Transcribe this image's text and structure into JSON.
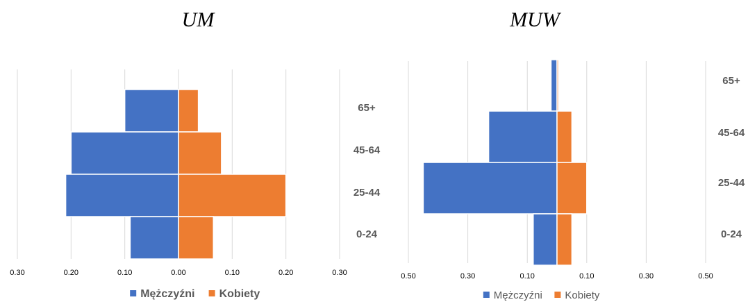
{
  "chart_data": [
    {
      "type": "bar",
      "orientation": "horizontal",
      "layout": "population-pyramid",
      "title": "UM",
      "categories": [
        "0-24",
        "25-44",
        "45-64",
        "65+"
      ],
      "series": [
        {
          "name": "Mężczyźni",
          "values": [
            0.09,
            0.21,
            0.2,
            0.1
          ],
          "color": "#4472C4"
        },
        {
          "name": "Kobiety",
          "values": [
            0.065,
            0.2,
            0.08,
            0.037
          ],
          "color": "#ED7D31"
        }
      ],
      "xlim": [
        -0.3,
        0.3
      ],
      "tick_values": [
        -0.3,
        -0.2,
        -0.1,
        0,
        0.1,
        0.2,
        0.3
      ],
      "tick_labels": [
        "0.30",
        "0.20",
        "0.10",
        "0.00",
        "0.10",
        "0.20",
        "0.30"
      ],
      "grid": true,
      "legend": "bottom",
      "legend_bold": true
    },
    {
      "type": "bar",
      "orientation": "horizontal",
      "layout": "population-pyramid",
      "title": "MUW",
      "categories": [
        "0-24",
        "25-44",
        "45-64",
        "65+"
      ],
      "series": [
        {
          "name": "Mężczyźni",
          "values": [
            0.08,
            0.45,
            0.23,
            0.02
          ],
          "color": "#4472C4"
        },
        {
          "name": "Kobiety",
          "values": [
            0.05,
            0.1,
            0.05,
            0.005
          ],
          "color": "#ED7D31"
        }
      ],
      "xlim": [
        -0.5,
        0.5
      ],
      "tick_values": [
        -0.5,
        -0.3,
        -0.1,
        0.1,
        0.3,
        0.5
      ],
      "tick_labels": [
        "0.50",
        "0.30",
        "0.10",
        "0.10",
        "0.30",
        "0.50"
      ],
      "grid": true,
      "legend": "bottom",
      "legend_bold": false
    }
  ]
}
